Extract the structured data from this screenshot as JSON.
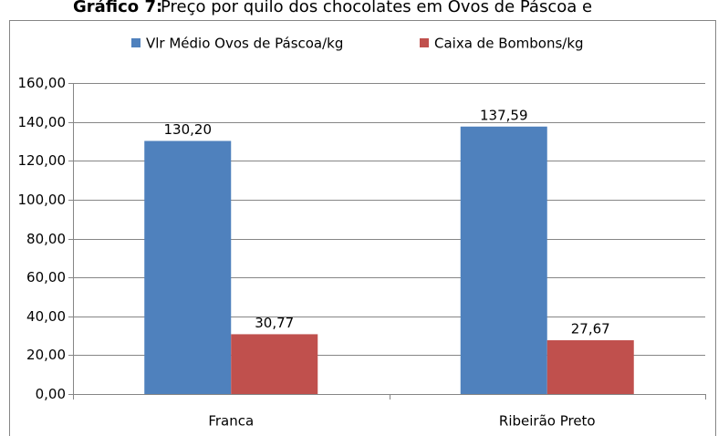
{
  "chart_data": {
    "type": "bar",
    "title_label": "Gráfico 7:",
    "title": "Preço por quilo dos chocolates em Ovos de Páscoa e",
    "categories": [
      "Franca",
      "Ribeirão Preto"
    ],
    "series": [
      {
        "name": "Vlr Médio Ovos de Páscoa/kg",
        "color": "#4f81bd",
        "values": [
          130.2,
          137.59
        ],
        "value_labels": [
          "130,20",
          "137,59"
        ]
      },
      {
        "name": "Caixa de Bombons/kg",
        "color": "#c0504d",
        "values": [
          30.77,
          27.67
        ],
        "value_labels": [
          "30,77",
          "27,67"
        ]
      }
    ],
    "ylim": [
      0,
      160
    ],
    "yticks": [
      {
        "value": 0,
        "label": "0,00"
      },
      {
        "value": 20,
        "label": "20,00"
      },
      {
        "value": 40,
        "label": "40,00"
      },
      {
        "value": 60,
        "label": "60,00"
      },
      {
        "value": 80,
        "label": "80,00"
      },
      {
        "value": 100,
        "label": "100,00"
      },
      {
        "value": 120,
        "label": "120,00"
      },
      {
        "value": 140,
        "label": "140,00"
      },
      {
        "value": 160,
        "label": "160,00"
      }
    ],
    "grid": true,
    "legend": "top"
  }
}
